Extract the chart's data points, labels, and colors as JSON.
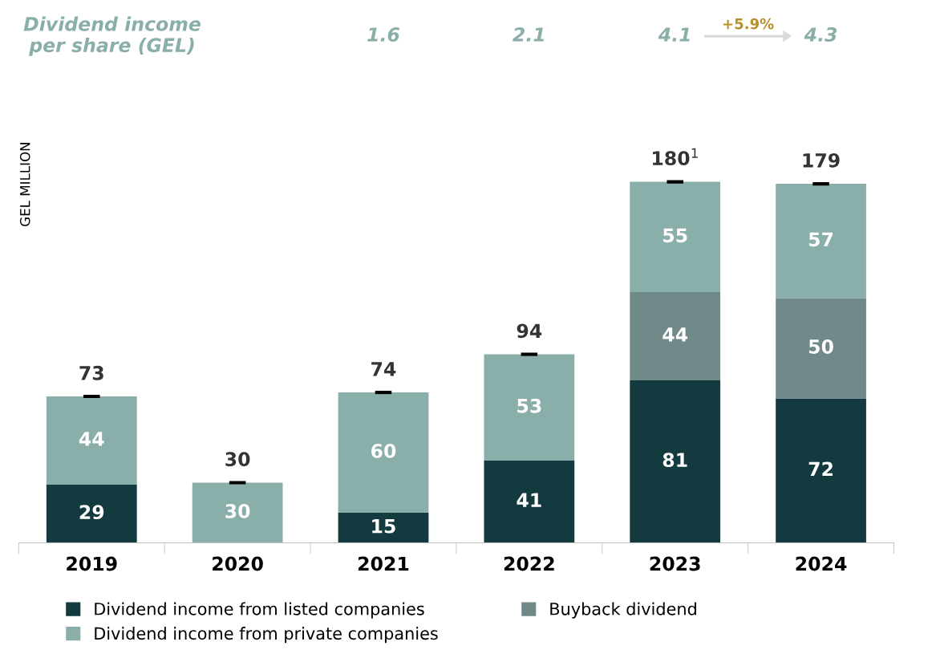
{
  "chart_data": {
    "type": "bar",
    "stacked": true,
    "ylabel": "GEL MILLION",
    "categories": [
      "2019",
      "2020",
      "2021",
      "2022",
      "2023",
      "2024"
    ],
    "series": [
      {
        "name": "Dividend income from listed companies",
        "color": "#133a3e",
        "values": [
          29,
          null,
          15,
          41,
          81,
          72
        ]
      },
      {
        "name": "Buyback dividend",
        "color": "#6f8a88",
        "values": [
          null,
          null,
          null,
          null,
          44,
          50
        ]
      },
      {
        "name": "Dividend income from private companies",
        "color": "#8aaea9",
        "values": [
          44,
          30,
          60,
          53,
          55,
          57
        ]
      }
    ],
    "data_labels": true,
    "totals": [
      "73",
      "30",
      "74",
      "94",
      "180$^{1}$",
      "179"
    ],
    "annotations": [
      "Dividend income\nper share (GEL)",
      "1.6",
      "2.1",
      "4.1",
      "4.3",
      "+5.9%"
    ],
    "legend": "bottom",
    "grid": false
  }
}
